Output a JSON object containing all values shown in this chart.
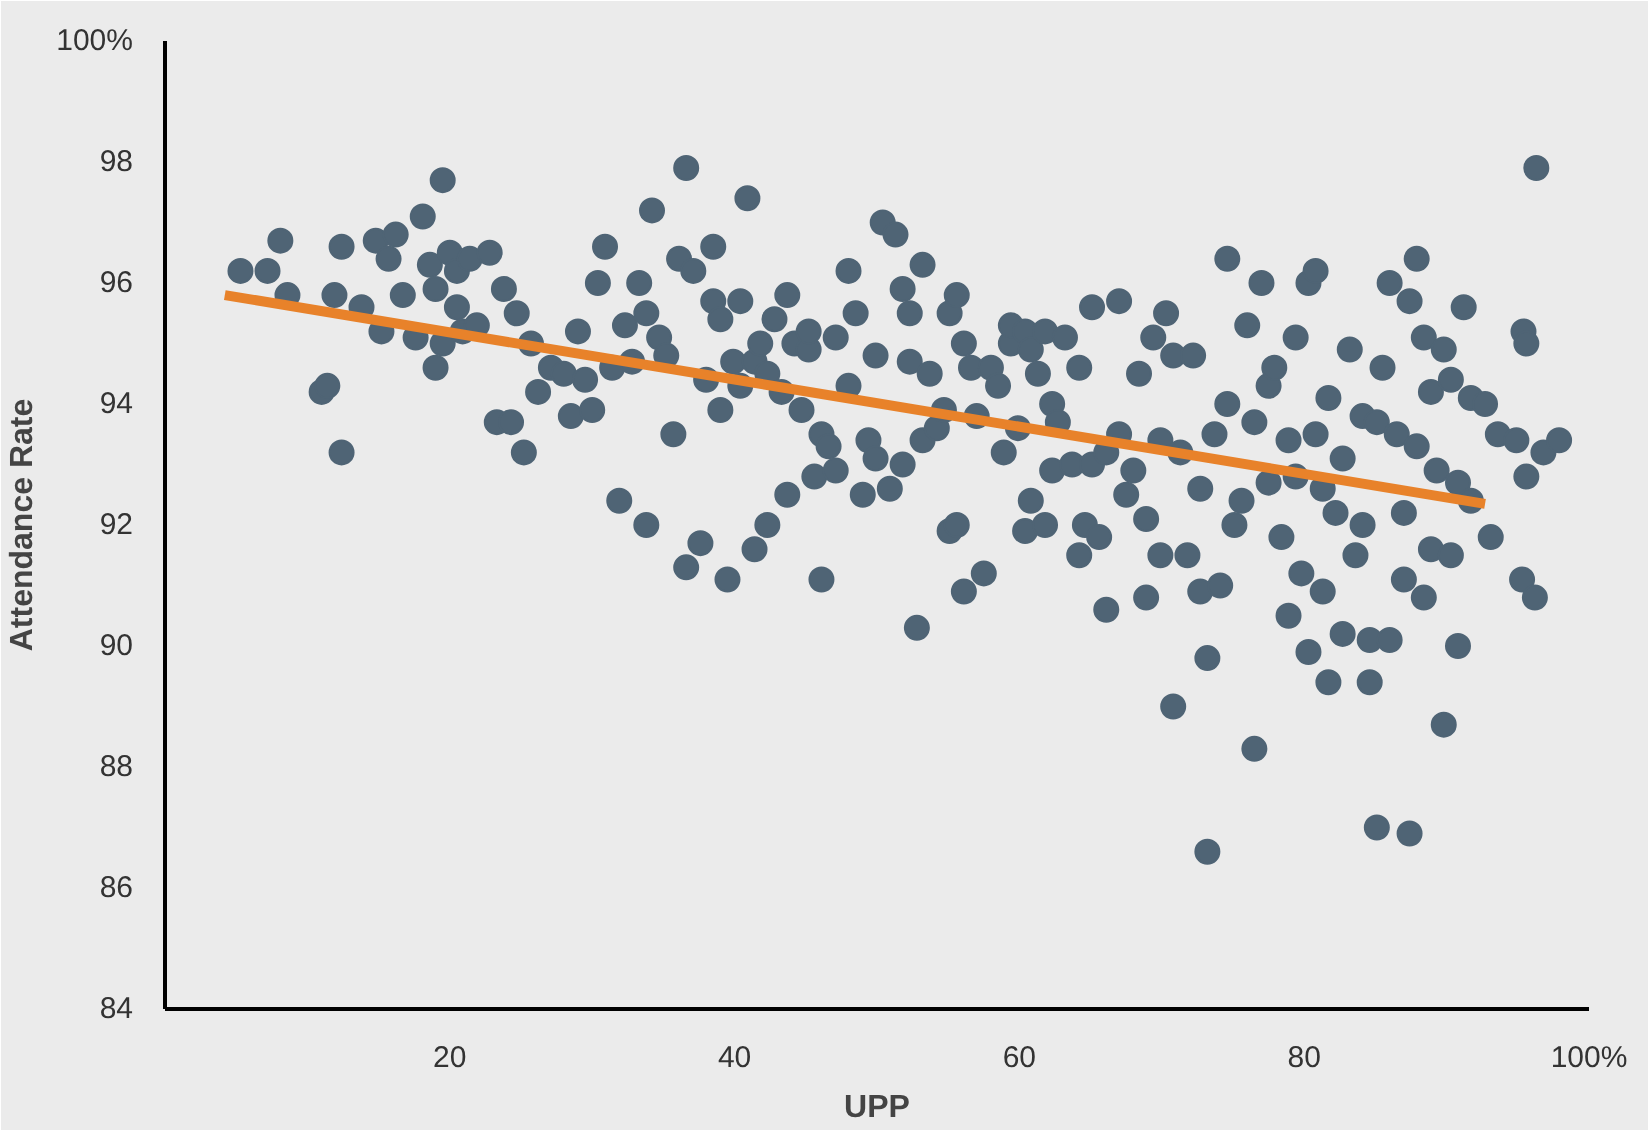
{
  "chart_data": {
    "type": "scatter",
    "xlabel": "UPP",
    "ylabel": "Attendance Rate",
    "xlim": [
      0,
      100
    ],
    "ylim": [
      84,
      100
    ],
    "xticks": [
      20,
      40,
      60,
      80,
      {
        "value": 100,
        "label": "100%"
      }
    ],
    "yticks": [
      84,
      86,
      88,
      90,
      92,
      94,
      96,
      98,
      {
        "value": 100,
        "label": "100%"
      }
    ],
    "grid": false,
    "series": [
      {
        "color": "#4f6475",
        "marker": "circle",
        "x": [
          5.3,
          7.2,
          8.1,
          8.6,
          11,
          11.4,
          11.9,
          12.4,
          12.4,
          13.8,
          14.8,
          15.2,
          15.7,
          16.2,
          16.7,
          17.6,
          18.1,
          18.6,
          19,
          19,
          19.5,
          19.5,
          20,
          20.5,
          20.5,
          20.9,
          21.4,
          21.9,
          22.8,
          23.3,
          23.8,
          24.3,
          24.7,
          25.2,
          25.7,
          26.2,
          27.1,
          28,
          28.5,
          29,
          29.5,
          30,
          30.4,
          30.9,
          31.4,
          31.9,
          32.3,
          32.8,
          33.3,
          33.8,
          33.8,
          34.2,
          34.7,
          35.2,
          35.7,
          36.1,
          36.6,
          36.6,
          37.1,
          37.6,
          38,
          38.5,
          38.5,
          39,
          39,
          39.5,
          39.9,
          40.4,
          40.4,
          40.9,
          41.4,
          41.4,
          41.8,
          42.3,
          42.3,
          42.8,
          43.3,
          43.7,
          43.7,
          44.2,
          44.7,
          45.2,
          45.2,
          45.6,
          46.1,
          46.1,
          46.6,
          47.1,
          47.1,
          48,
          48,
          48.5,
          49,
          49.4,
          49.9,
          49.9,
          50.4,
          50.9,
          51.3,
          51.8,
          51.8,
          52.3,
          52.3,
          52.8,
          53.2,
          53.2,
          53.7,
          54.2,
          54.7,
          55.1,
          55.1,
          55.6,
          55.6,
          56.1,
          56.1,
          56.6,
          57,
          57.5,
          58,
          58.5,
          58.9,
          59.4,
          59.4,
          59.9,
          60.4,
          60.4,
          60.8,
          60.8,
          61.3,
          61.8,
          61.8,
          62.3,
          62.3,
          62.7,
          63.2,
          63.7,
          64.2,
          64.2,
          64.6,
          65.1,
          65.1,
          65.6,
          66.1,
          66.1,
          67,
          67,
          67.5,
          68,
          68.4,
          68.9,
          68.9,
          69.4,
          69.9,
          69.9,
          70.3,
          70.8,
          70.8,
          71.3,
          71.8,
          72.2,
          72.7,
          72.7,
          73.2,
          73.2,
          73.7,
          74.1,
          74.6,
          74.6,
          75.1,
          75.6,
          76,
          76.5,
          76.5,
          77,
          77.5,
          77.5,
          77.9,
          78.4,
          78.9,
          78.9,
          79.4,
          79.4,
          79.8,
          80.3,
          80.3,
          80.8,
          80.8,
          81.3,
          81.3,
          81.7,
          81.7,
          82.2,
          82.7,
          82.7,
          83.2,
          83.6,
          84.1,
          84.1,
          84.6,
          84.6,
          85.1,
          85.1,
          85.5,
          86,
          86,
          86.5,
          87,
          87,
          87.4,
          87.4,
          87.9,
          87.9,
          88.4,
          88.4,
          88.9,
          88.9,
          89.3,
          89.8,
          89.8,
          90.3,
          90.3,
          90.8,
          90.8,
          91.2,
          91.7,
          91.7,
          92.7,
          93.1,
          93.6,
          94.9,
          95.3,
          95.4,
          95.6,
          95.6,
          96.2,
          96.3,
          96.8,
          97.9
        ],
        "values": [
          96.2,
          96.2,
          96.7,
          95.8,
          94.2,
          94.3,
          95.8,
          93.2,
          96.6,
          95.6,
          96.7,
          95.2,
          96.4,
          96.8,
          95.8,
          95.1,
          97.1,
          96.3,
          94.6,
          95.9,
          97.7,
          95,
          96.5,
          95.6,
          96.2,
          95.2,
          96.4,
          95.3,
          96.5,
          93.7,
          95.9,
          93.7,
          95.5,
          93.2,
          95,
          94.2,
          94.6,
          94.5,
          93.8,
          95.2,
          94.4,
          93.9,
          96,
          96.6,
          94.6,
          92.4,
          95.3,
          94.7,
          96,
          92,
          95.5,
          97.2,
          95.1,
          94.8,
          93.5,
          96.4,
          97.9,
          91.3,
          96.2,
          91.7,
          94.4,
          95.7,
          96.6,
          93.9,
          95.4,
          91.1,
          94.7,
          94.3,
          95.7,
          97.4,
          91.6,
          94.7,
          95,
          92,
          94.5,
          95.4,
          94.2,
          92.5,
          95.8,
          95,
          93.9,
          94.9,
          95.2,
          92.8,
          93.5,
          91.1,
          93.3,
          92.9,
          95.1,
          94.3,
          96.2,
          95.5,
          92.5,
          93.4,
          93.1,
          94.8,
          97,
          92.6,
          96.8,
          95.9,
          93,
          95.5,
          94.7,
          90.3,
          96.3,
          93.4,
          94.5,
          93.6,
          93.9,
          91.9,
          95.5,
          92,
          95.8,
          95,
          90.9,
          94.6,
          93.8,
          91.2,
          94.6,
          94.3,
          93.2,
          95,
          95.3,
          93.6,
          95.2,
          91.9,
          94.9,
          92.4,
          94.5,
          92,
          95.2,
          92.9,
          94,
          93.7,
          95.1,
          93,
          91.5,
          94.6,
          92,
          93,
          95.6,
          91.8,
          90.6,
          93.2,
          93.5,
          95.7,
          92.5,
          92.9,
          94.5,
          90.8,
          92.1,
          95.1,
          93.4,
          91.5,
          95.5,
          89,
          94.8,
          93.2,
          91.5,
          94.8,
          90.9,
          92.6,
          86.6,
          89.8,
          93.5,
          91,
          94,
          96.4,
          92,
          92.4,
          95.3,
          88.3,
          93.7,
          96,
          94.3,
          92.7,
          94.6,
          91.8,
          93.4,
          90.5,
          95.1,
          92.8,
          91.2,
          89.9,
          96,
          93.5,
          96.2,
          90.9,
          92.6,
          89.4,
          94.1,
          92.2,
          93.1,
          90.2,
          94.9,
          91.5,
          93.8,
          92,
          89.4,
          90.1,
          87,
          93.7,
          94.6,
          90.1,
          96,
          93.5,
          91.1,
          92.2,
          86.9,
          95.7,
          96.4,
          93.3,
          95.1,
          90.8,
          94.2,
          91.6,
          92.9,
          94.9,
          88.7,
          91.5,
          94.4,
          90,
          92.7,
          95.6,
          94.1,
          92.4,
          94,
          91.8,
          93.5,
          93.4,
          91.1,
          95.2,
          95,
          92.8,
          90.8,
          97.9,
          93.2,
          93.4
        ]
      },
      {
        "type": "line",
        "color": "#e8822a",
        "marker": "none",
        "x": [
          4.2,
          92.7
        ],
        "values": [
          95.8,
          92.35
        ]
      }
    ]
  }
}
